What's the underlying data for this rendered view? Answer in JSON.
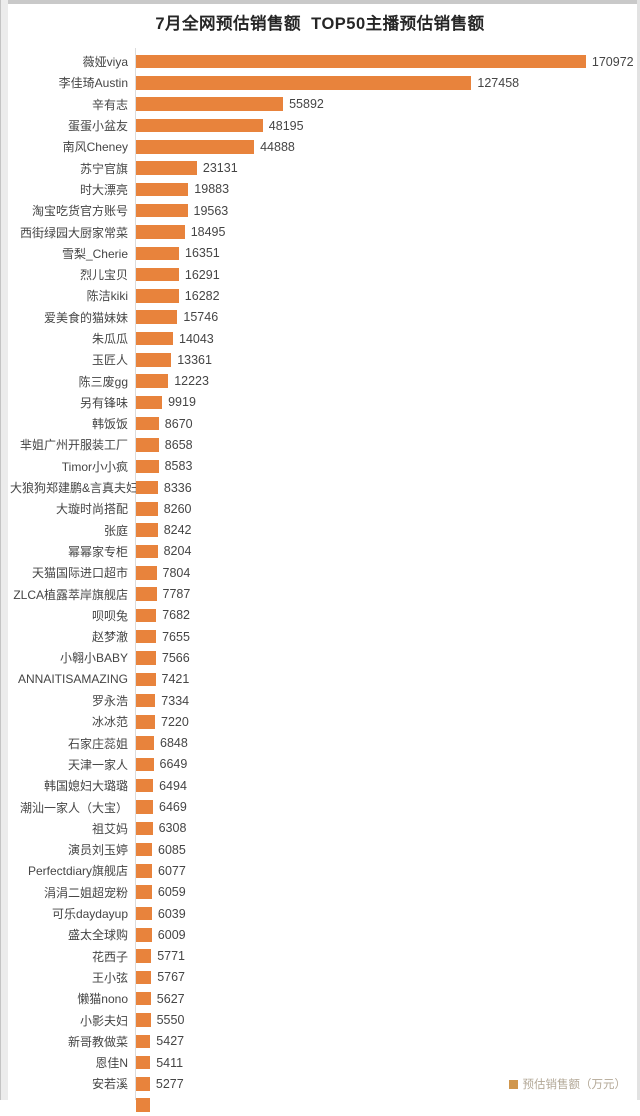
{
  "title": "7月全网预估销售额  TOP50主播预估销售额",
  "legend": {
    "label": "预估销售额（万元）",
    "swatch_color": "#d0964d"
  },
  "colors": {
    "bar": "#e8833c",
    "label_text": "#454545",
    "value_text": "#454545",
    "axis_line": "#dcdcdc",
    "title_text": "#262626",
    "legend_text": "#b3a897"
  },
  "chart_data": {
    "type": "bar",
    "orientation": "horizontal",
    "title": "7月全网预估销售额  TOP50主播预估销售额",
    "xlabel": "",
    "ylabel": "",
    "xlim": [
      0,
      171000
    ],
    "grid": false,
    "legend_position": "bottom-right",
    "legend_entries": [
      "预估销售额（万元）"
    ],
    "value_labels_shown": true,
    "partial_last_row_clipped": true,
    "categories": [
      "薇娅viya",
      "李佳琦Austin",
      "辛有志",
      "蛋蛋小盆友",
      "南风Cheney",
      "苏宁官旗",
      "时大漂亮",
      "淘宝吃货官方账号",
      "西街绿园大厨家常菜",
      "雪梨_Cherie",
      "烈儿宝贝",
      "陈洁kiki",
      "爱美食的猫妹妹",
      "朱瓜瓜",
      "玉匠人",
      "陈三废gg",
      "另有锋味",
      "韩饭饭",
      "芈姐广州开服装工厂",
      "Timor小小疯",
      "大狼狗郑建鹏&言真夫妇",
      "大璇时尚搭配",
      "张庭",
      "幂幂家专柜",
      "天猫国际进口超市",
      "ZLCA植露萃岸旗舰店",
      "呗呗兔",
      "赵梦澈",
      "小翱小BABY",
      "ANNAITISAMAZING",
      "罗永浩",
      "冰冰范",
      "石家庄蕊姐",
      "天津一家人",
      "韩国媳妇大璐璐",
      "潮汕一家人（大宝）",
      "祖艾妈",
      "演员刘玉婷",
      "Perfectdiary旗舰店",
      "涓涓二姐超宠粉",
      "可乐daydayup",
      "盛太全球购",
      "花西子",
      "王小弦",
      "懒猫nono",
      "小影夫妇",
      "新哥教做菜",
      "恩佳N",
      "安若溪"
    ],
    "values": [
      170972,
      127458,
      55892,
      48195,
      44888,
      23131,
      19883,
      19563,
      18495,
      16351,
      16291,
      16282,
      15746,
      14043,
      13361,
      12223,
      9919,
      8670,
      8658,
      8583,
      8336,
      8260,
      8242,
      8204,
      7804,
      7787,
      7682,
      7655,
      7566,
      7421,
      7334,
      7220,
      6848,
      6649,
      6494,
      6469,
      6308,
      6085,
      6077,
      6059,
      6039,
      6009,
      5771,
      5767,
      5627,
      5550,
      5427,
      5411,
      5277
    ]
  }
}
